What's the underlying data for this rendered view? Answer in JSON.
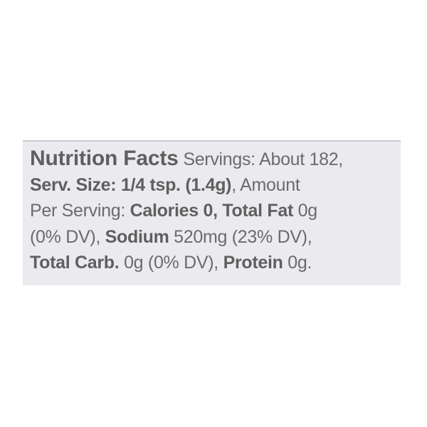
{
  "label": {
    "title": "Nutrition Facts",
    "servings": " Servings: About 182,",
    "serv_size": "Serv. Size: 1/4 tsp. (1.4g)",
    "amount": ", Amount",
    "per_serving": "Per Serving: ",
    "calories": "Calories 0, Total Fat",
    "fat_value": " 0g",
    "fat_dv": "(0% DV), ",
    "sodium_label": "Sodium",
    "sodium_value": " 520mg (23% DV),",
    "carb_label": "Total Carb.",
    "carb_value": " 0g (0% DV), ",
    "protein_label": "Protein",
    "protein_value": " 0g."
  },
  "colors": {
    "text": "#6b6b6b",
    "label_background": "#ebebef"
  }
}
